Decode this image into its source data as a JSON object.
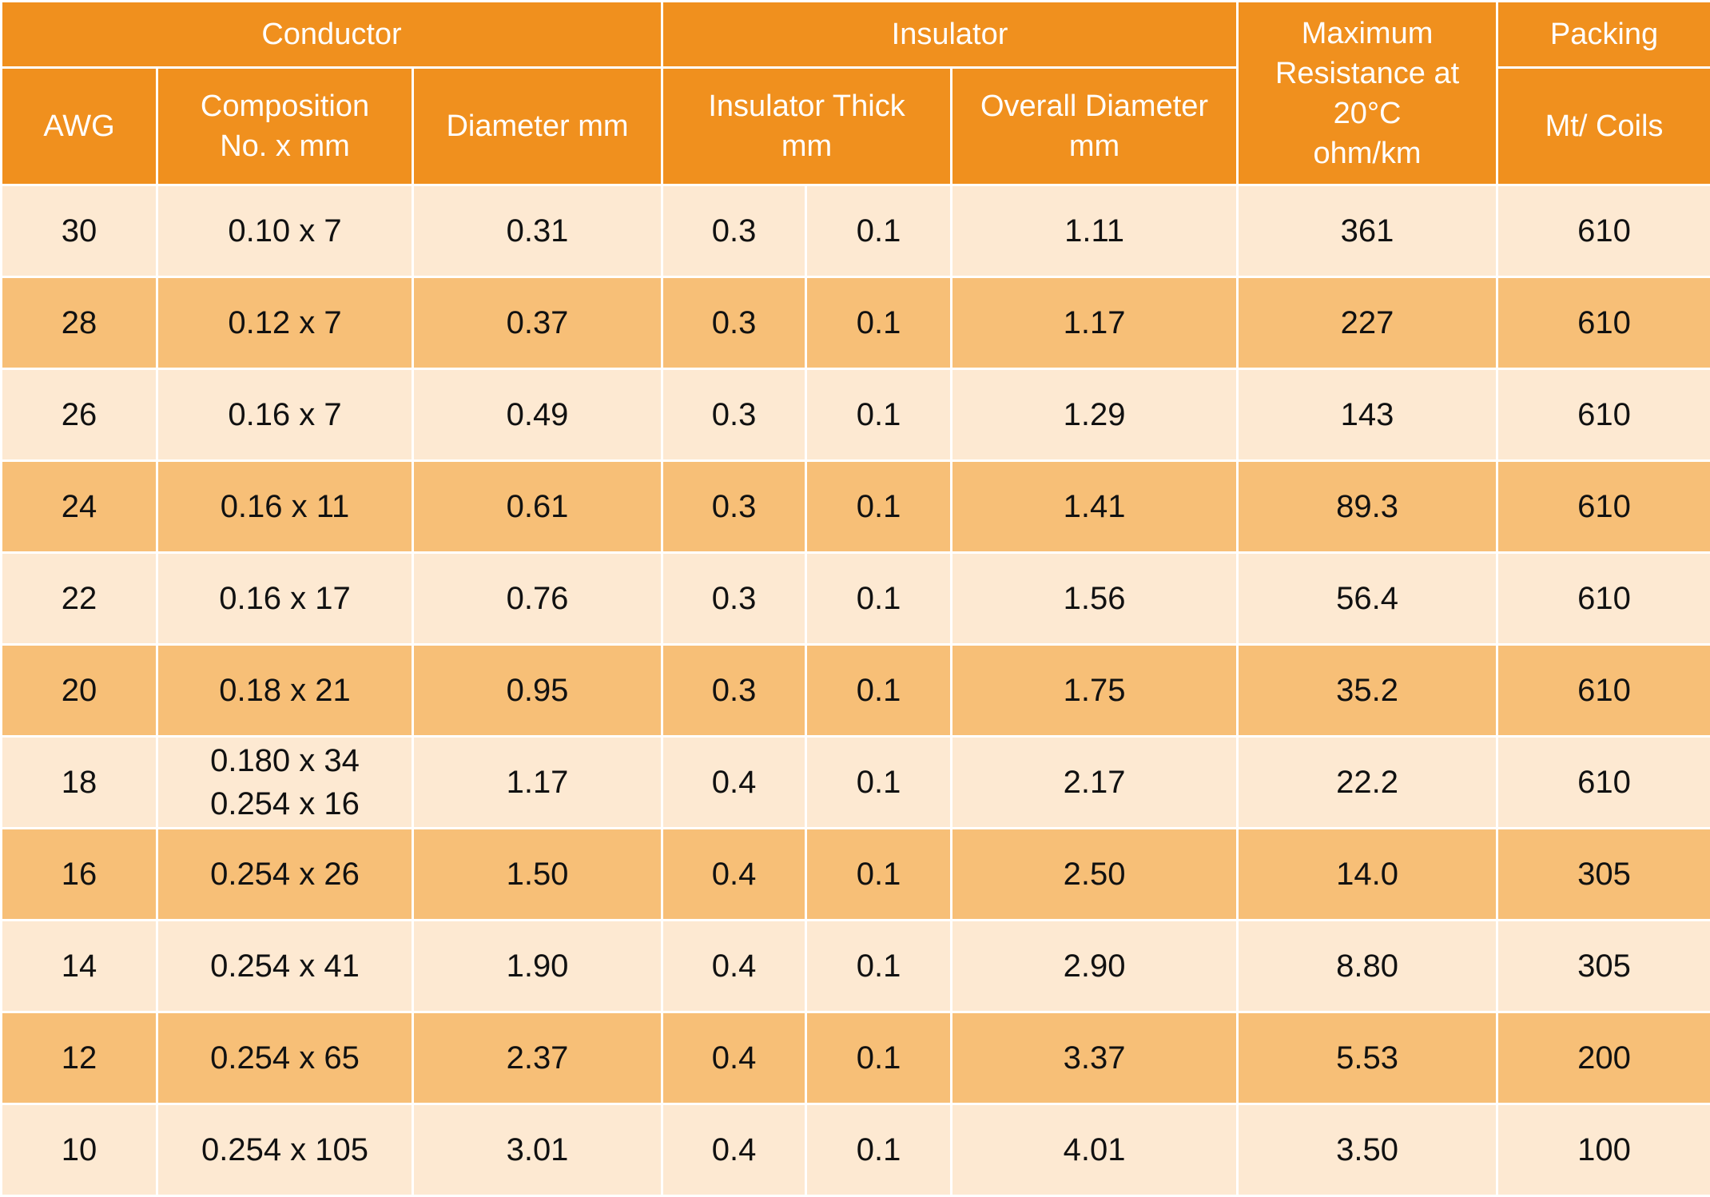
{
  "colors": {
    "header_bg": "#f0901e",
    "header_text": "#ffffff",
    "row_light": "#fde9d2",
    "row_dark": "#f7bf77",
    "cell_text": "#111111"
  },
  "header": {
    "groups": {
      "conductor": "Conductor",
      "insulator": "Insulator",
      "max_resistance": "Maximum\nResistance at 20°C\nohm/km",
      "packing": "Packing"
    },
    "columns": {
      "awg": "AWG",
      "composition": "Composition\nNo. x mm",
      "diameter": "Diameter mm",
      "insulator_thick": "Insulator Thick\nmm",
      "overall_diameter": "Overall Diameter\nmm",
      "packing_unit": "Mt/ Coils"
    }
  },
  "rows": [
    {
      "awg": "30",
      "composition": "0.10 x 7",
      "diameter": "0.31",
      "thick_a": "0.3",
      "thick_b": "0.1",
      "overall": "1.11",
      "resistance": "361",
      "packing": "610"
    },
    {
      "awg": "28",
      "composition": "0.12 x 7",
      "diameter": "0.37",
      "thick_a": "0.3",
      "thick_b": "0.1",
      "overall": "1.17",
      "resistance": "227",
      "packing": "610"
    },
    {
      "awg": "26",
      "composition": "0.16 x 7",
      "diameter": "0.49",
      "thick_a": "0.3",
      "thick_b": "0.1",
      "overall": "1.29",
      "resistance": "143",
      "packing": "610"
    },
    {
      "awg": "24",
      "composition": "0.16 x 11",
      "diameter": "0.61",
      "thick_a": "0.3",
      "thick_b": "0.1",
      "overall": "1.41",
      "resistance": "89.3",
      "packing": "610"
    },
    {
      "awg": "22",
      "composition": "0.16 x 17",
      "diameter": "0.76",
      "thick_a": "0.3",
      "thick_b": "0.1",
      "overall": "1.56",
      "resistance": "56.4",
      "packing": "610"
    },
    {
      "awg": "20",
      "composition": "0.18 x 21",
      "diameter": "0.95",
      "thick_a": "0.3",
      "thick_b": "0.1",
      "overall": "1.75",
      "resistance": "35.2",
      "packing": "610"
    },
    {
      "awg": "18",
      "composition": "0.180 x 34\n0.254 x 16",
      "diameter": "1.17",
      "thick_a": "0.4",
      "thick_b": "0.1",
      "overall": "2.17",
      "resistance": "22.2",
      "packing": "610"
    },
    {
      "awg": "16",
      "composition": "0.254 x 26",
      "diameter": "1.50",
      "thick_a": "0.4",
      "thick_b": "0.1",
      "overall": "2.50",
      "resistance": "14.0",
      "packing": "305"
    },
    {
      "awg": "14",
      "composition": "0.254 x 41",
      "diameter": "1.90",
      "thick_a": "0.4",
      "thick_b": "0.1",
      "overall": "2.90",
      "resistance": "8.80",
      "packing": "305"
    },
    {
      "awg": "12",
      "composition": "0.254 x 65",
      "diameter": "2.37",
      "thick_a": "0.4",
      "thick_b": "0.1",
      "overall": "3.37",
      "resistance": "5.53",
      "packing": "200"
    },
    {
      "awg": "10",
      "composition": "0.254 x 105",
      "diameter": "3.01",
      "thick_a": "0.4",
      "thick_b": "0.1",
      "overall": "4.01",
      "resistance": "3.50",
      "packing": "100"
    }
  ]
}
